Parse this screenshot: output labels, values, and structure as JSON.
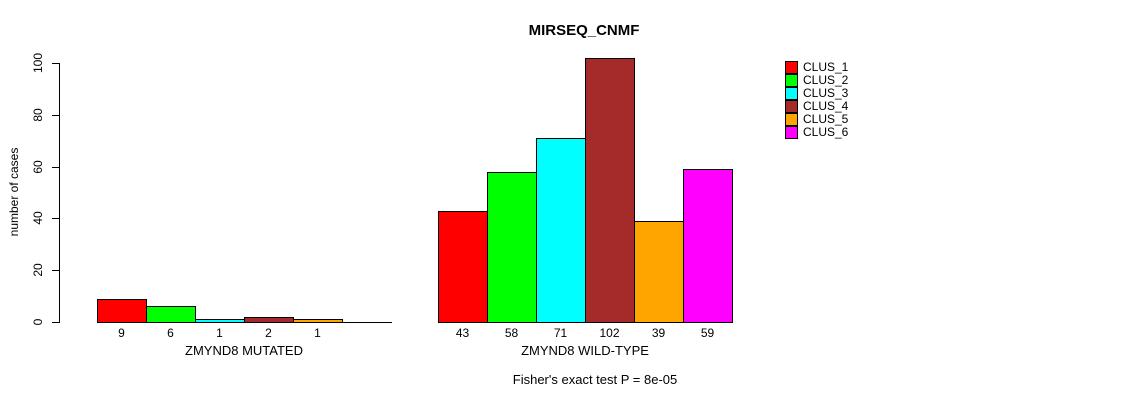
{
  "chart_data": {
    "type": "bar",
    "title": "MIRSEQ_CNMF",
    "ylabel": "number of cases",
    "ylim": [
      0,
      102
    ],
    "y_ticks": [
      0,
      20,
      40,
      60,
      80,
      100
    ],
    "grid": false,
    "legend_position": "right",
    "legend": [
      "CLUS_1",
      "CLUS_2",
      "CLUS_3",
      "CLUS_4",
      "CLUS_5",
      "CLUS_6"
    ],
    "colors": [
      "#ff0000",
      "#00ff00",
      "#00ffff",
      "#a52a2a",
      "#ffa500",
      "#ff00ff"
    ],
    "groups": [
      {
        "label": "ZMYND8 MUTATED",
        "values": [
          9,
          6,
          1,
          2,
          1,
          0
        ],
        "bar_labels": [
          "9",
          "6",
          "1",
          "2",
          "1",
          ""
        ]
      },
      {
        "label": "ZMYND8 WILD-TYPE",
        "values": [
          43,
          58,
          71,
          102,
          39,
          59
        ],
        "bar_labels": [
          "43",
          "58",
          "71",
          "102",
          "39",
          "59"
        ]
      }
    ],
    "annotation": "Fisher's exact test P = 8e-05"
  }
}
